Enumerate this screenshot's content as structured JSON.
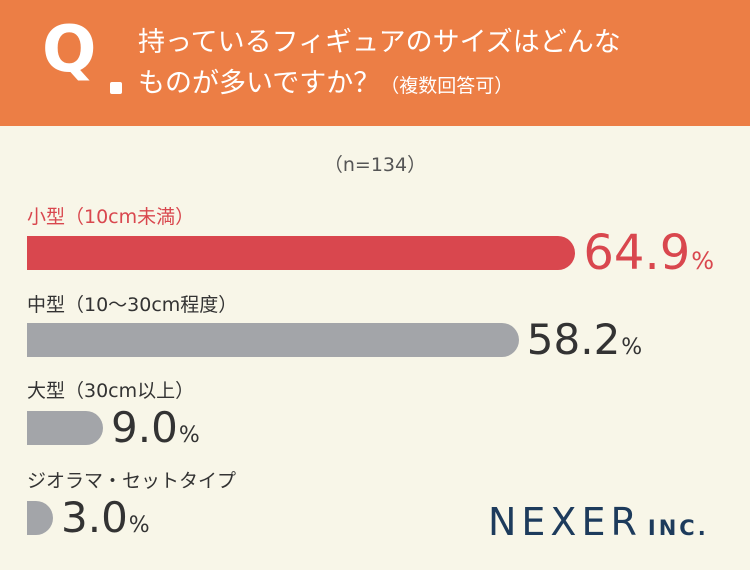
{
  "question": {
    "mark": "Q",
    "line1": "持っているフィギュアのサイズはどんな",
    "line2": "ものが多いですか？",
    "note": "（複数回答可）"
  },
  "sample": "（n=134）",
  "logo": {
    "main": "NEXER",
    "inc": "INC."
  },
  "colors": {
    "header": "#ec7e45",
    "highlight": "#d9474e",
    "bar": "#a3a5a9",
    "background": "#f8f6e8"
  },
  "chart_data": {
    "type": "bar",
    "orientation": "horizontal",
    "categories": [
      "小型（10cm未満）",
      "中型（10〜30cm程度）",
      "大型（30cm以上）",
      "ジオラマ・セットタイプ"
    ],
    "values": [
      64.9,
      58.2,
      9.0,
      3.0
    ],
    "value_labels": [
      "64.9",
      "58.2",
      "9.0",
      "3.0"
    ],
    "unit": "%",
    "highlight_index": 0
  }
}
